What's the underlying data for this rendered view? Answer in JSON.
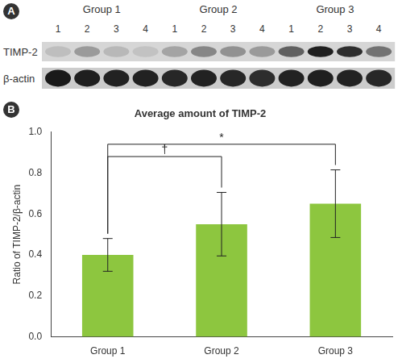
{
  "panel_labels": [
    "A",
    "B"
  ],
  "blot": {
    "groups": [
      "Group 1",
      "Group 2",
      "Group 3"
    ],
    "lanes": [
      1,
      2,
      3,
      4
    ],
    "rows": [
      {
        "label": "TIMP-2",
        "intensity": [
          0.12,
          0.3,
          0.15,
          0.1,
          0.25,
          0.4,
          0.35,
          0.3,
          0.6,
          0.92,
          0.85,
          0.5
        ]
      },
      {
        "label": "β-actin",
        "intensity": [
          0.95,
          0.92,
          0.9,
          0.9,
          0.88,
          0.9,
          0.88,
          0.85,
          0.9,
          0.92,
          0.9,
          0.88
        ]
      }
    ]
  },
  "chart_data": {
    "type": "bar",
    "title": "Average amount of TIMP-2",
    "y_label": "Ratio of TIMP-2/β-actin",
    "categories": [
      "Group 1",
      "Group 2",
      "Group 3"
    ],
    "values": [
      0.4,
      0.55,
      0.65
    ],
    "errors": [
      0.08,
      0.155,
      0.165
    ],
    "color": "#8dc63f",
    "ylim": [
      0,
      1
    ],
    "yticks": [
      {
        "value": 0,
        "label": "0.0"
      },
      0.2,
      0.4,
      0.6,
      0.8,
      {
        "value": 1,
        "label": "1.0"
      }
    ],
    "grid": false,
    "annotations": [
      {
        "text": "†",
        "from": "Group 1",
        "to": "Group 2",
        "y": 0.88
      },
      {
        "text": "*",
        "from": "Group 1",
        "to": "Group 3",
        "y": 0.94
      }
    ]
  }
}
